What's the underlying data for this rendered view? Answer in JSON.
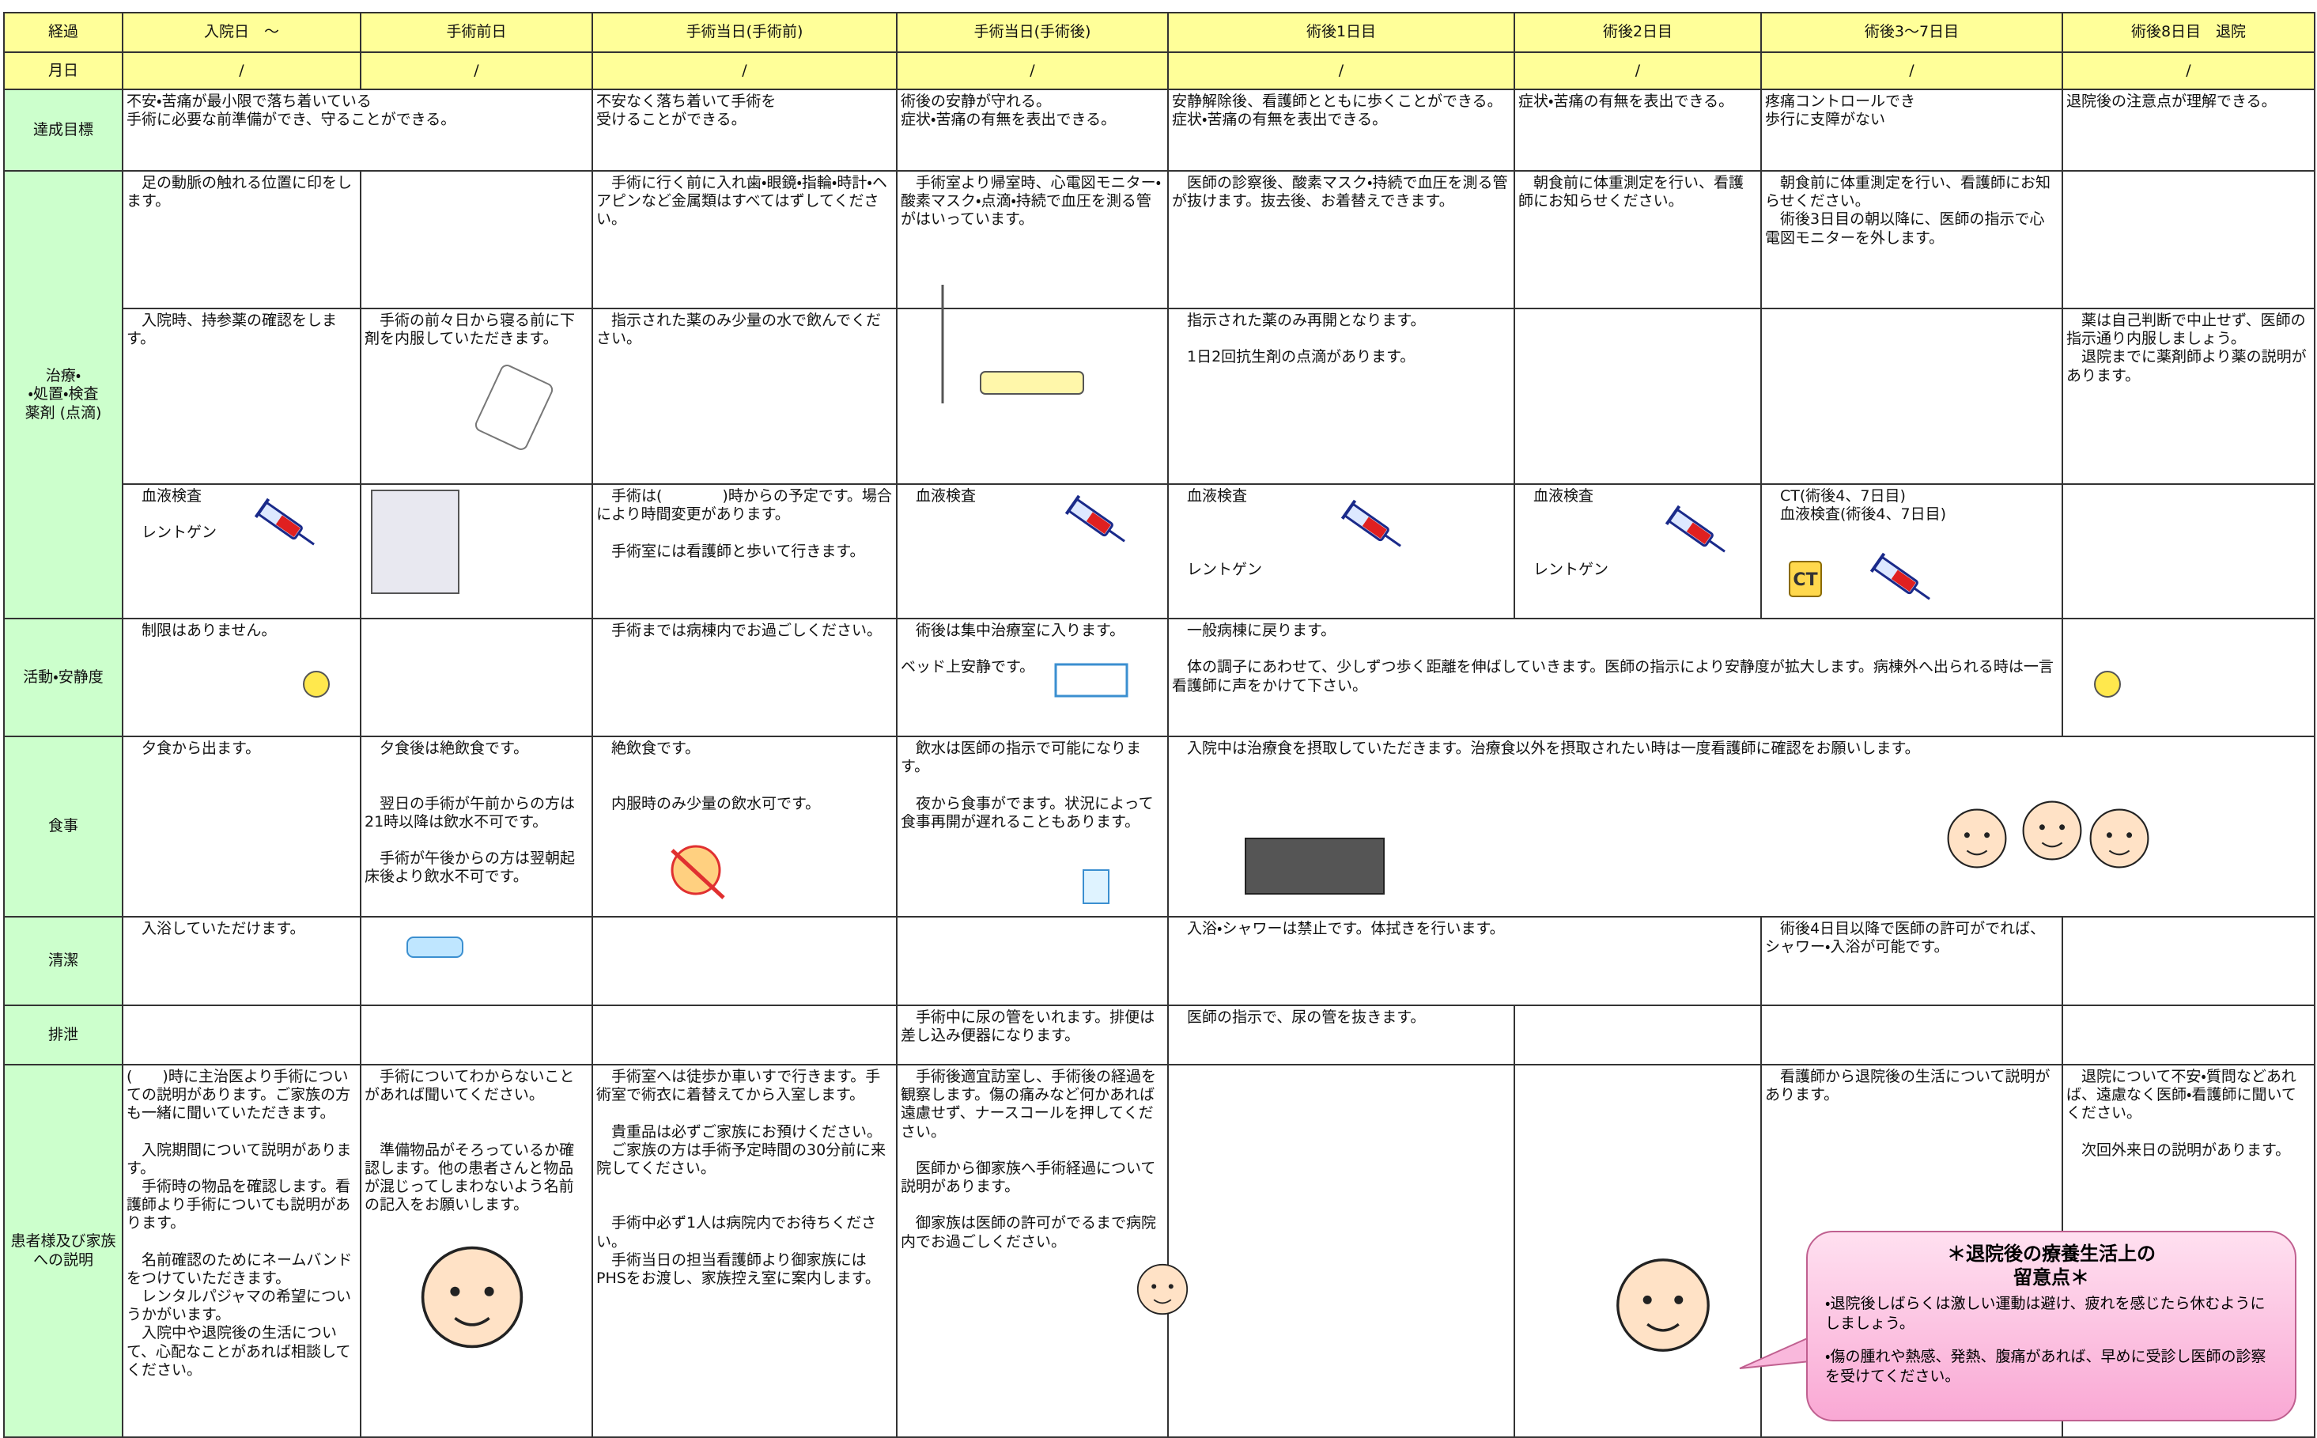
{
  "header": {
    "columns": [
      "経過",
      "入院日　～",
      "手術前日",
      "手術当日(手術前)",
      "手術当日(手術後)",
      "術後1日目",
      "術後2日目",
      "術後3～7日目",
      "術後8日目　退院"
    ]
  },
  "dates": {
    "label": "月日",
    "cells": [
      "/",
      "/",
      "/",
      "/",
      "/",
      "/",
      "/",
      "/"
    ]
  },
  "goal": {
    "label": "達成目標",
    "cells": [
      "不安・苦痛が最小限で落ち着いている\n手術に必要な前準備ができ、守ることができる。",
      "不安なく落ち着いて手術を\n受けることができる。",
      "術後の安静が守れる。\n症状・苦痛の有無を表出できる。",
      "安静解除後、看護師とともに歩くことができる。\n症状・苦痛の有無を表出できる。",
      "症状・苦痛の有無を表出できる。",
      "疼痛コントロールでき\n歩行に支障がない",
      "退院後の注意点が理解できる。"
    ]
  },
  "treatment": {
    "label": "治療・\n・処置・検査\n薬剤 (点滴)",
    "rows": [
      [
        "　足の動脈の触れる位置に印をします。",
        "　手術に行く前に入れ歯・眼鏡・指輪・時計・ヘアピンなど金属類はすべてはずしてください。",
        "　手術室より帰室時、心電図モニター・酸素マスク・点滴・持続で血圧を測る管がはいっています。",
        "　医師の診察後、酸素マスク・持続で血圧を測る管が抜けます。抜去後、お着替えできます。",
        "　朝食前に体重測定を行い、看護師にお知らせください。",
        "　朝食前に体重測定を行い、看護師にお知らせください。\n　術後3日目の朝以降に、医師の指示で心電図モニターを外します。"
      ],
      [
        "　入院時、持参薬の確認をします。",
        "　手術の前々日から寝る前に下剤を内服していただきます。",
        "　指示された薬のみ少量の水で飲んでください。",
        "　指示された薬のみ再開となります。\n\n　1日2回抗生剤の点滴があります。",
        "　薬は自己判断で中止せず、医師の指示通り内服しましょう。\n　退院までに薬剤師より薬の説明があります。"
      ],
      [
        "　血液検査\n\n　レントゲン",
        "　手術は(　　　　)時からの予定です。場合により時間変更があります。\n\n　手術室には看護師と歩いて行きます。",
        "　血液検査",
        "　血液検査\n\n\n\n　レントゲン",
        "　血液検査\n\n\n\n　レントゲン",
        "　CT(術後4、7日目)\n　血液検査(術後4、7日目)"
      ]
    ]
  },
  "ct_badge": "CT",
  "activity": {
    "label": "活動・安静度",
    "cells": [
      "　制限はありません。",
      "　手術までは病棟内でお過ごしください。",
      "　術後は集中治療室に入ります。\n\nベッド上安静です。",
      "　一般病棟に戻ります。\n\n　体の調子にあわせて、少しずつ歩く距離を伸ばしていきます。医師の指示により安静度が拡大します。病棟外へ出られる時は一言看護師に声をかけて下さい。"
    ]
  },
  "meal": {
    "label": "食事",
    "cells": [
      "　夕食から出ます。",
      "　夕食後は絶飲食です。\n\n\n　翌日の手術が午前からの方は21時以降は飲水不可です。\n\n　手術が午後からの方は翌朝起床後より飲水不可です。",
      "　絶飲食です。\n\n\n　内服時のみ少量の飲水可です。",
      "　飲水は医師の指示で可能になります。\n\n　夜から食事がでます。状況によって食事再開が遅れることもあります。",
      "　入院中は治療食を摂取していただきます。治療食以外を摂取されたい時は一度看護師に確認をお願いします。"
    ]
  },
  "hygiene": {
    "label": "清潔",
    "cells": [
      "　入浴していただけます。",
      "　入浴・シャワーは禁止です。体拭きを行います。",
      "　術後4日目以降で医師の許可がでれば、シャワー・入浴が可能です。"
    ]
  },
  "excretion": {
    "label": "排泄",
    "cells": [
      "　手術中に尿の管をいれます。排便は差し込み便器になります。",
      "　医師の指示で、尿の管を抜きます。"
    ]
  },
  "explanation": {
    "label": "患者様及び家族への説明",
    "cells": [
      "(　　)時に主治医より手術についての説明があります。ご家族の方も一緒に聞いていただきます。\n\n　入院期間について説明があります。\n　手術時の物品を確認します。看護師より手術についても説明があります。\n\n　名前確認のためにネームバンドをつけていただきます。\n　レンタルパジャマの希望についうかがいます。\n　入院中や退院後の生活について、心配なことがあれば相談してください。",
      "　手術についてわからないことがあれば聞いてください。\n\n\n　準備物品がそろっているか確認します。他の患者さんと物品が混じってしまわないよう名前の記入をお願いします。",
      "　手術室へは徒歩か車いすで行きます。手術室で術衣に着替えてから入室します。\n\n　貴重品は必ずご家族にお預けください。\n　ご家族の方は手術予定時間の30分前に来院してください。\n\n\n　手術中必ず1人は病院内でお待ちください。\n　手術当日の担当看護師より御家族にはPHSをお渡し、家族控え室に案内します。",
      "　手術後適宜訪室し、手術後の経過を観察します。傷の痛みなど何かあれば遠慮せず、ナースコールを押してください。\n\n　医師から御家族へ手術経過について説明があります。\n\n　御家族は医師の許可がでるまで病院内でお過ごしください。",
      "　看護師から退院後の生活について説明があります。",
      "　退院について不安・質問などあれば、遠慮なく医師・看護師に聞いてください。\n\n　次回外来日の説明があります。"
    ]
  },
  "callout": {
    "title": "＊退院後の療養生活上の\n留意点＊",
    "items": [
      "・退院後しばらくは激しい運動は避け、疲れを感じたら休むようにしましょう。",
      "・傷の腫れや熱感、発熱、腹痛があれば、早めに受診し医師の診察を受けてください。"
    ]
  }
}
